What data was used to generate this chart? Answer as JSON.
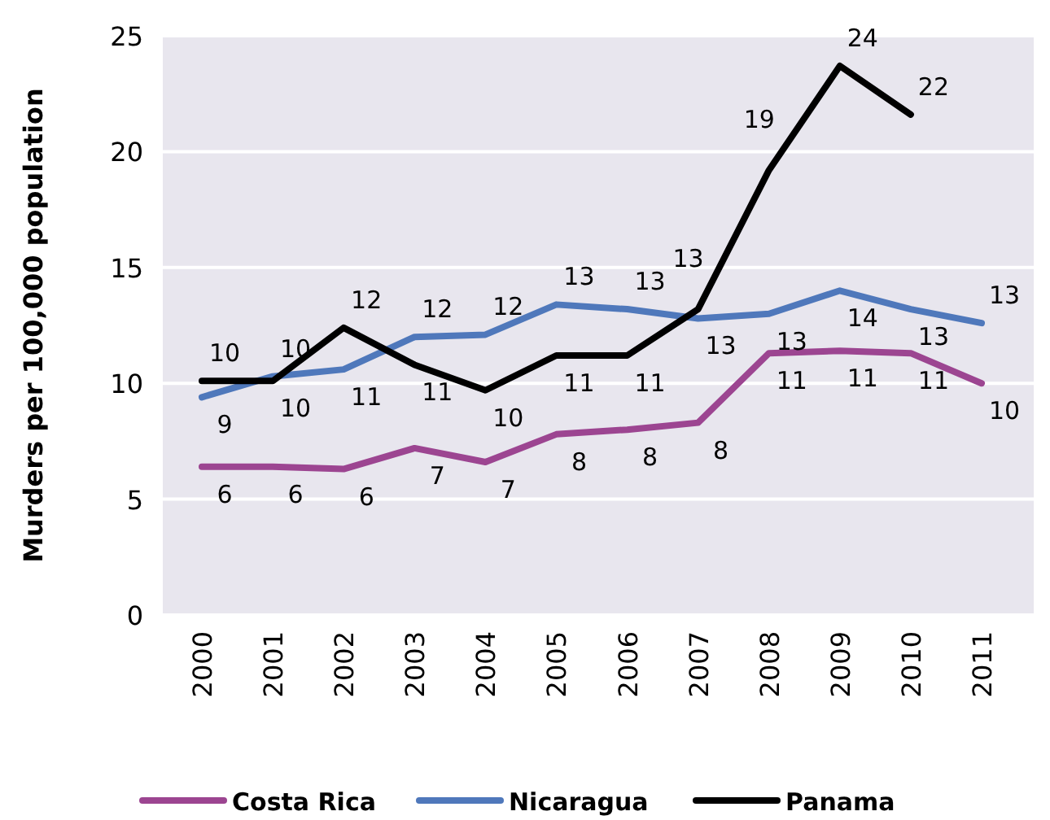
{
  "chart_data": {
    "type": "line",
    "ylabel": "Murders per 100,000 population",
    "categories": [
      "2000",
      "2001",
      "2002",
      "2003",
      "2004",
      "2005",
      "2006",
      "2007",
      "2008",
      "2009",
      "2010",
      "2011"
    ],
    "ylim": [
      0,
      25
    ],
    "yticks": [
      0,
      5,
      10,
      15,
      20,
      25
    ],
    "grid": "y",
    "legend": "bottom",
    "marker": "none",
    "line_style": "solid",
    "series": [
      {
        "name": "Costa Rica",
        "color": "#9c4591",
        "values": [
          6.4,
          6.4,
          6.3,
          7.2,
          6.6,
          7.8,
          8.0,
          8.3,
          11.3,
          11.4,
          11.3,
          10.0
        ],
        "value_labels": [
          "6",
          "6",
          "6",
          "7",
          "7",
          "8",
          "8",
          "8",
          "11",
          "11",
          "11",
          "10"
        ]
      },
      {
        "name": "Nicaragua",
        "color": "#4f78bb",
        "values": [
          9.4,
          10.3,
          10.6,
          12.0,
          12.1,
          13.4,
          13.2,
          12.8,
          13.0,
          14.0,
          13.2,
          12.6
        ],
        "value_labels": [
          "9",
          "10",
          "11",
          "12",
          "12",
          "13",
          "13",
          "13",
          "13",
          "14",
          "13",
          "13"
        ]
      },
      {
        "name": "Panama",
        "color": "#000000",
        "values": [
          10.1,
          10.1,
          12.4,
          10.8,
          9.7,
          11.2,
          11.2,
          13.2,
          19.2,
          23.7,
          21.6,
          null
        ],
        "value_labels": [
          "10",
          "10",
          "12",
          "11",
          "10",
          "11",
          "11",
          "13",
          "19",
          "24",
          "22",
          null
        ]
      }
    ]
  }
}
